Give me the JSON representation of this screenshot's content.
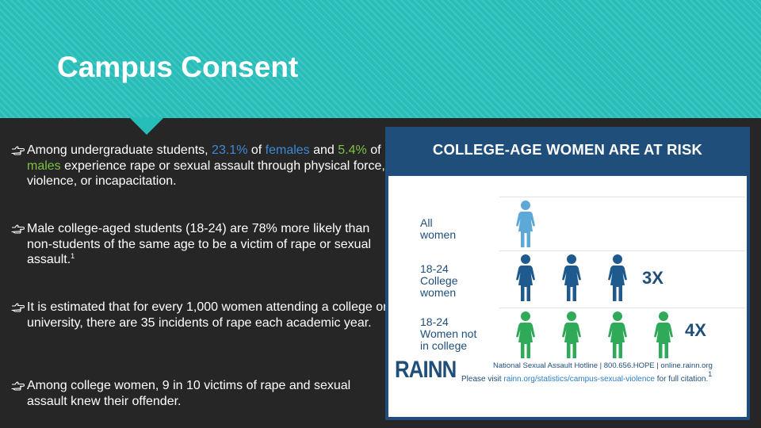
{
  "slide": {
    "title": "Campus Consent"
  },
  "bullets": [
    {
      "parts": [
        {
          "text": "Among undergraduate students, "
        },
        {
          "text": "23.1%",
          "style": "hl-blue"
        },
        {
          "text": " of "
        },
        {
          "text": "females",
          "style": "hl-blue"
        },
        {
          "text": " and "
        },
        {
          "text": "5.4%",
          "style": "hl-green"
        },
        {
          "text": " of "
        },
        {
          "text": "males",
          "style": "hl-green"
        },
        {
          "text": " experience rape or sexual assault through physical force, violence, or incapacitation."
        }
      ]
    },
    {
      "parts": [
        {
          "text": "Male college-aged students (18-24) are 78% more likely than non-students of the same age to be a victim of rape or sexual assault."
        },
        {
          "text": "1",
          "style": "sup"
        }
      ]
    },
    {
      "parts": [
        {
          "text": "It is estimated that for every 1,000 women attending a college or university, there are 35 incidents of rape each academic year."
        }
      ]
    },
    {
      "parts": [
        {
          "text": "Among college women, 9 in 10 victims of rape and sexual assault knew their offender."
        }
      ]
    }
  ],
  "infographic": {
    "title": "COLLEGE-AGE WOMEN ARE AT RISK",
    "rows": [
      {
        "label_lines": [
          "All",
          "women"
        ],
        "count": 1,
        "color": "#5ca8d8",
        "multiplier": ""
      },
      {
        "label_lines": [
          "18-24",
          "College",
          "women"
        ],
        "count": 3,
        "color": "#1f5a8f",
        "multiplier": "3X"
      },
      {
        "label_lines": [
          "18-24",
          "Women not",
          "in college"
        ],
        "count": 4,
        "color": "#2eaa58",
        "multiplier": "4X"
      }
    ],
    "logo": "RAINN",
    "hotline": "National Sexual Assault Hotline | 800.656.HOPE | online.rainn.org",
    "visit_prefix": "Please visit ",
    "visit_url": "rainn.org/statistics/campus-sexual-violence",
    "visit_suffix": " for full citation.",
    "visit_sup": "1"
  },
  "colors": {
    "accent_teal": "#27bdb8",
    "highlight_blue": "#3d8ad6",
    "highlight_green": "#7cc242",
    "info_navy": "#1f4e7a"
  },
  "icons": {
    "bullet": "hand-pointing-right-icon",
    "person": "woman-figure-icon"
  }
}
